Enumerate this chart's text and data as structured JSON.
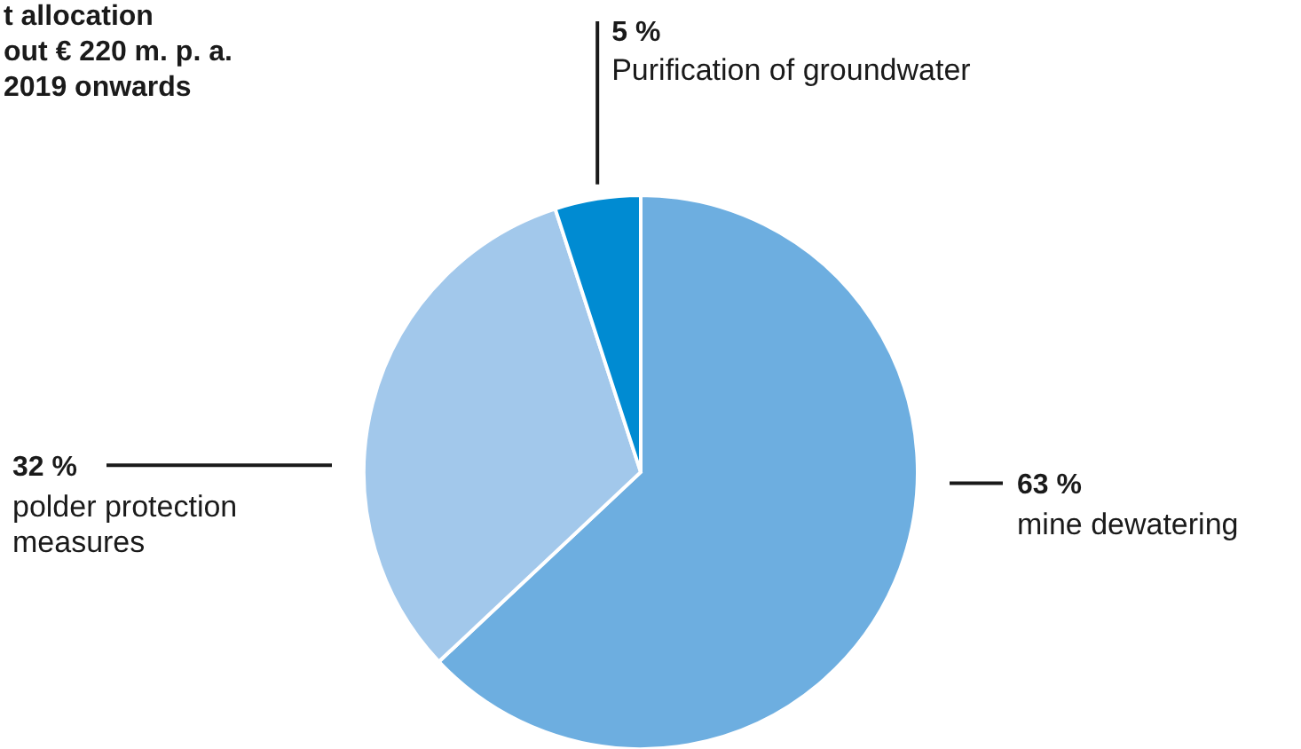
{
  "chart_data": {
    "type": "pie",
    "title": "t allocation\nout € 220 m. p. a.\n2019 onwards",
    "categories": [
      "mine dewatering",
      "polder protection\nmeasures",
      "Purification of groundwater"
    ],
    "values": [
      63,
      32,
      5
    ],
    "value_labels": [
      "63 %",
      "32 %",
      "5 %"
    ],
    "colors": [
      "#6daee0",
      "#a2c8eb",
      "#008bd2"
    ]
  }
}
